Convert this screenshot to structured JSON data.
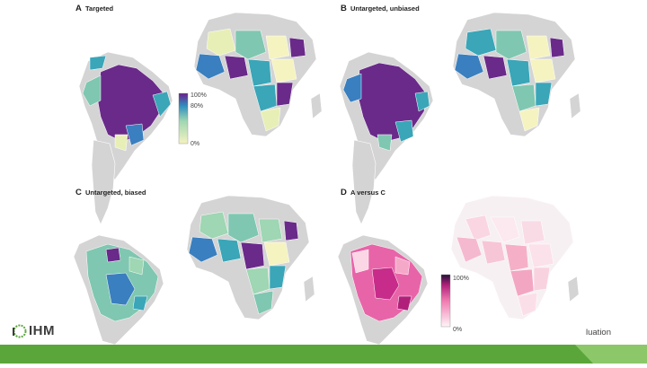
{
  "panels": [
    {
      "id": "A",
      "letter": "A",
      "title": "Targeted",
      "scheme": "viridis",
      "legend": {
        "labels": [
          "100%",
          "80%",
          "0%"
        ]
      }
    },
    {
      "id": "B",
      "letter": "B",
      "title": "Untargeted, unbiased",
      "scheme": "viridis"
    },
    {
      "id": "C",
      "letter": "C",
      "title": "Untargeted, biased",
      "scheme": "viridis"
    },
    {
      "id": "D",
      "letter": "D",
      "title": "A versus C",
      "scheme": "pink",
      "legend": {
        "labels": [
          "100%",
          "0%"
        ]
      }
    }
  ],
  "colors": {
    "land_other": "#d4d4d4",
    "border": "#ffffff",
    "viridis_low": "#f5f3c0",
    "viridis_mid": "#3aa6b8",
    "viridis_high": "#6a2a8a",
    "pink_low": "#fdeef2",
    "pink_mid": "#f08ab5",
    "pink_high": "#2a1240",
    "footer_green": "#5aa63a",
    "footer_light": "#8cc86a"
  },
  "footer": {
    "logo_text": "IHM",
    "tail_text": "luation"
  }
}
